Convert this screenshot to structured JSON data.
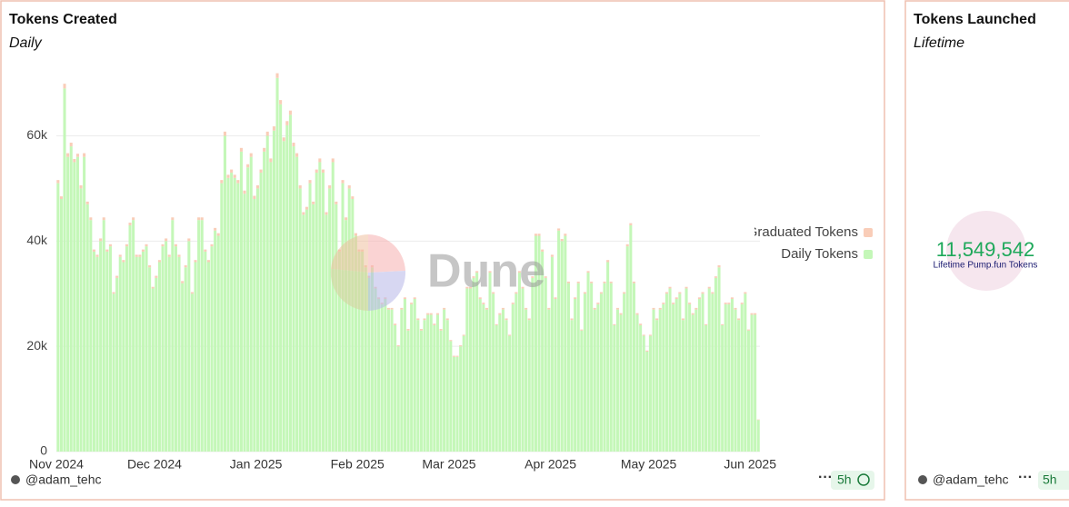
{
  "chart_data": {
    "type": "stacked_bar",
    "title": "Tokens Created",
    "subtitle": "Daily",
    "categories": [
      "Nov 2024",
      null,
      null,
      null,
      null,
      null,
      null,
      null,
      null,
      null,
      null,
      null,
      null,
      null,
      null,
      null,
      null,
      null,
      null,
      null,
      null,
      null,
      null,
      null,
      null,
      null,
      null,
      null,
      null,
      null,
      "Dec 2024",
      null,
      null,
      null,
      null,
      null,
      null,
      null,
      null,
      null,
      null,
      null,
      null,
      null,
      null,
      null,
      null,
      null,
      null,
      null,
      null,
      null,
      null,
      null,
      null,
      null,
      null,
      null,
      null,
      null,
      null,
      "Jan 2025",
      null,
      null,
      null,
      null,
      null,
      null,
      null,
      null,
      null,
      null,
      null,
      null,
      null,
      null,
      null,
      null,
      null,
      null,
      null,
      null,
      null,
      null,
      null,
      null,
      null,
      null,
      null,
      null,
      null,
      null,
      "Feb 2025",
      null,
      null,
      null,
      null,
      null,
      null,
      null,
      null,
      null,
      null,
      null,
      null,
      null,
      null,
      null,
      null,
      null,
      null,
      null,
      null,
      null,
      null,
      null,
      null,
      null,
      null,
      null,
      "Mar 2025",
      null,
      null,
      null,
      null,
      null,
      null,
      null,
      null,
      null,
      null,
      null,
      null,
      null,
      null,
      null,
      null,
      null,
      null,
      null,
      null,
      null,
      null,
      null,
      null,
      null,
      null,
      null,
      null,
      null,
      null,
      "Apr 2025",
      null,
      null,
      null,
      null,
      null,
      null,
      null,
      null,
      null,
      null,
      null,
      null,
      null,
      null,
      null,
      null,
      null,
      null,
      null,
      null,
      null,
      null,
      null,
      null,
      null,
      null,
      null,
      null,
      null,
      "May 2025",
      null,
      null,
      null,
      null,
      null,
      null,
      null,
      null,
      null,
      null,
      null,
      null,
      null,
      null,
      null,
      null,
      null,
      null,
      null,
      null,
      null,
      null,
      null,
      null,
      null,
      null,
      null,
      null,
      null,
      null,
      "Jun 2025",
      null,
      null
    ],
    "series": [
      {
        "name": "Daily Tokens",
        "color": "#c4f7b8",
        "values": [
          51000,
          48000,
          69000,
          56000,
          58000,
          55000,
          56000,
          50000,
          56000,
          47000,
          44000,
          38000,
          37000,
          40000,
          44000,
          38000,
          39000,
          30000,
          33000,
          37000,
          36000,
          39000,
          43000,
          44000,
          37000,
          37000,
          38000,
          39000,
          35000,
          31000,
          33000,
          36000,
          39000,
          40000,
          37000,
          44000,
          39000,
          37000,
          32000,
          35000,
          40000,
          30000,
          36000,
          44000,
          44000,
          38000,
          36000,
          39000,
          42000,
          41000,
          51000,
          60000,
          52000,
          53000,
          52000,
          51000,
          57000,
          49000,
          54000,
          56000,
          48000,
          50000,
          53000,
          57000,
          60000,
          55000,
          61000,
          71000,
          66000,
          59000,
          62000,
          64000,
          58000,
          56000,
          50000,
          45000,
          46000,
          51000,
          47000,
          53000,
          55000,
          53000,
          45000,
          50000,
          55000,
          47000,
          38000,
          51000,
          44000,
          50000,
          48000,
          41000,
          38000,
          38000,
          35000,
          33000,
          35000,
          31000,
          29000,
          28000,
          29000,
          27000,
          27000,
          24000,
          20000,
          27000,
          29000,
          23000,
          28000,
          29000,
          25000,
          23000,
          25000,
          26000,
          26000,
          24000,
          26000,
          23000,
          27000,
          25000,
          21000,
          18000,
          18000,
          20000,
          22000,
          31000,
          31000,
          33000,
          34000,
          29000,
          28000,
          27000,
          34000,
          30000,
          24000,
          26000,
          27000,
          25000,
          22000,
          28000,
          30000,
          34000,
          31000,
          27000,
          25000,
          33000,
          41000,
          41000,
          38000,
          33000,
          27000,
          37000,
          29000,
          42000,
          40000,
          41000,
          32000,
          25000,
          29000,
          32000,
          23000,
          30000,
          34000,
          32000,
          27000,
          28000,
          30000,
          32000,
          36000,
          32000,
          24000,
          27000,
          26000,
          30000,
          39000,
          43000,
          32000,
          26000,
          24000,
          22000,
          19000,
          22000,
          27000,
          25000,
          27000,
          28000,
          30000,
          31000,
          28000,
          29000,
          30000,
          25000,
          31000,
          28000,
          26000,
          27000,
          29000,
          30000,
          24000,
          31000,
          30000,
          33000,
          35000,
          24000,
          28000,
          28000,
          29000,
          27000,
          25000,
          28000,
          30000,
          23000,
          26000,
          26000,
          6000
        ]
      },
      {
        "name": "Graduated Tokens",
        "color": "#f9cdb8",
        "values": [
          600,
          500,
          900,
          700,
          700,
          600,
          600,
          600,
          700,
          500,
          500,
          400,
          400,
          500,
          500,
          400,
          400,
          300,
          400,
          400,
          400,
          400,
          500,
          500,
          400,
          400,
          400,
          400,
          400,
          300,
          400,
          400,
          400,
          500,
          400,
          500,
          400,
          400,
          400,
          400,
          500,
          300,
          400,
          500,
          500,
          400,
          400,
          400,
          500,
          500,
          600,
          800,
          600,
          600,
          600,
          600,
          700,
          600,
          600,
          700,
          600,
          600,
          600,
          700,
          800,
          700,
          800,
          900,
          800,
          700,
          800,
          800,
          700,
          700,
          600,
          500,
          500,
          600,
          500,
          600,
          700,
          600,
          500,
          600,
          700,
          500,
          400,
          600,
          500,
          600,
          500,
          500,
          400,
          400,
          400,
          400,
          400,
          300,
          300,
          300,
          300,
          300,
          300,
          300,
          200,
          300,
          300,
          300,
          300,
          300,
          300,
          300,
          300,
          300,
          300,
          300,
          300,
          300,
          300,
          300,
          200,
          200,
          200,
          200,
          200,
          300,
          300,
          300,
          300,
          300,
          300,
          300,
          300,
          300,
          200,
          300,
          300,
          300,
          200,
          300,
          300,
          300,
          300,
          300,
          300,
          300,
          400,
          400,
          400,
          300,
          300,
          400,
          300,
          400,
          400,
          400,
          300,
          300,
          300,
          300,
          200,
          300,
          300,
          300,
          300,
          300,
          300,
          300,
          400,
          300,
          200,
          300,
          300,
          300,
          400,
          400,
          300,
          300,
          300,
          200,
          200,
          200,
          300,
          300,
          300,
          300,
          300,
          300,
          300,
          300,
          300,
          300,
          300,
          300,
          300,
          300,
          300,
          300,
          200,
          300,
          300,
          300,
          400,
          200,
          300,
          300,
          300,
          300,
          300,
          300,
          300,
          200,
          300,
          300,
          100
        ]
      }
    ],
    "ylim": [
      0,
      72000
    ],
    "yticks": [
      0,
      {
        "value": 20000,
        "label": "20k"
      },
      {
        "value": 40000,
        "label": "40k"
      },
      {
        "value": 60000,
        "label": "60k"
      }
    ],
    "grid": true,
    "legend": "right",
    "watermark": "Dune"
  },
  "counter": {
    "title": "Tokens Launched",
    "subtitle": "Lifetime",
    "value": "11,549,542",
    "label": "Lifetime Pump.fun Tokens"
  },
  "footer": {
    "author": "@adam_tehc",
    "age": "5h"
  }
}
